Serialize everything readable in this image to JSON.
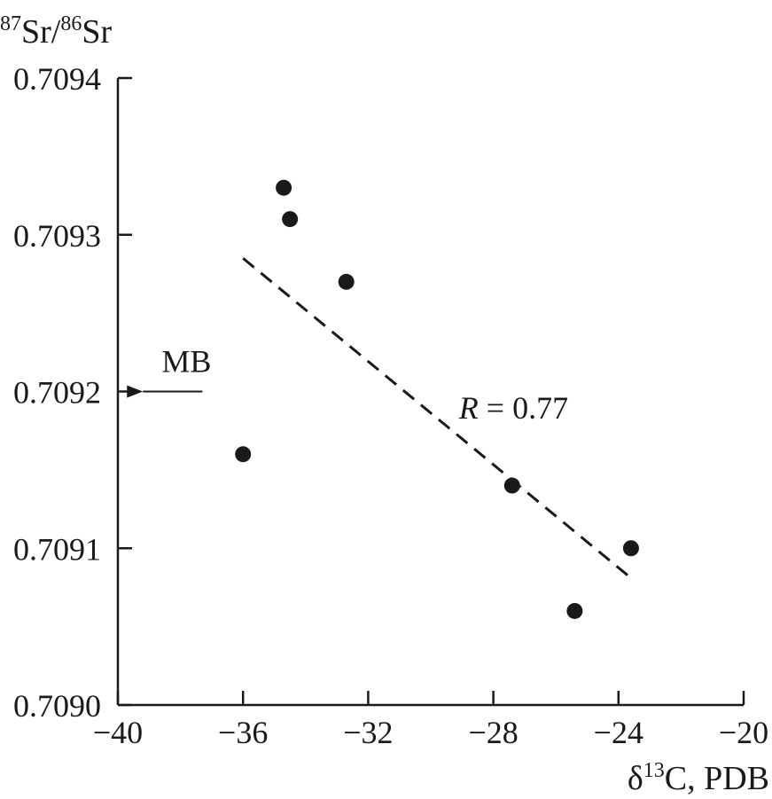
{
  "chart_data": {
    "type": "scatter",
    "xlabel": "δ13C, PDB",
    "ylabel": "87Sr/86Sr",
    "xlim": [
      -40,
      -20
    ],
    "ylim": [
      0.709,
      0.7094
    ],
    "x_ticks": [
      -40,
      -36,
      -32,
      -28,
      -24,
      -20
    ],
    "x_tick_labels": [
      "−40",
      "−36",
      "−32",
      "−28",
      "−24",
      "−20"
    ],
    "y_ticks": [
      0.709,
      0.7091,
      0.7092,
      0.7093,
      0.7094
    ],
    "y_tick_labels": [
      "0.7090",
      "0.7091",
      "0.7092",
      "0.7093",
      "0.7094"
    ],
    "grid": false,
    "series": [
      {
        "points": [
          {
            "x": -34.7,
            "y": 0.70933
          },
          {
            "x": -34.5,
            "y": 0.70931
          },
          {
            "x": -32.7,
            "y": 0.70927
          },
          {
            "x": -36.0,
            "y": 0.70916
          },
          {
            "x": -27.4,
            "y": 0.70914
          },
          {
            "x": -23.6,
            "y": 0.7091
          },
          {
            "x": -25.4,
            "y": 0.70906
          }
        ]
      }
    ],
    "trend_line": {
      "style": "dashed",
      "start": {
        "x": -36.0,
        "y": 0.709285
      },
      "end": {
        "x": -23.6,
        "y": 0.709081
      },
      "label": "R = 0.77",
      "label_italic_part": "R",
      "label_rest": " = 0.77"
    },
    "annotations": [
      {
        "text": "MB",
        "arrow_from": {
          "x": -37.3,
          "y": 0.7092
        },
        "arrow_to": {
          "x": -39.2,
          "y": 0.7092
        }
      }
    ]
  }
}
